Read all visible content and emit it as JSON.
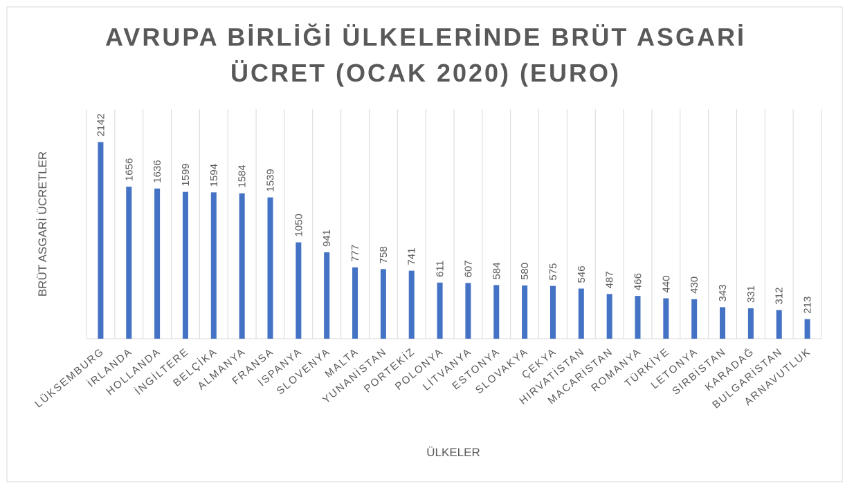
{
  "chart_data": {
    "type": "bar",
    "title": "AVRUPA BİRLİĞİ ÜLKELERİNDE BRÜT ASGARİ ÜCRET (OCAK 2020) (EURO)",
    "x_label": "ÜLKELER",
    "y_label": "BRÜT ASGARİ ÜCRETLER",
    "categories": [
      "LÜKSEMBURG",
      "İRLANDA",
      "HOLLANDA",
      "İNGİLTERE",
      "BELÇİKA",
      "ALMANYA",
      "FRANSA",
      "İSPANYA",
      "SLOVENYA",
      "MALTA",
      "YUNANİSTAN",
      "PORTEKİZ",
      "POLONYA",
      "LİTVANYA",
      "ESTONYA",
      "SLOVAKYA",
      "ÇEKYA",
      "HIRVATİSTAN",
      "MACARİSTAN",
      "ROMANYA",
      "TÜRKİYE",
      "LETONYA",
      "SIRBİSTAN",
      "KARADAĞ",
      "BULGARİSTAN",
      "ARNAVUTLUK"
    ],
    "values": [
      2142,
      1656,
      1636,
      1599,
      1594,
      1584,
      1539,
      1050,
      941,
      777,
      758,
      741,
      611,
      607,
      584,
      580,
      575,
      546,
      487,
      466,
      440,
      430,
      343,
      331,
      312,
      213
    ],
    "color": "#4472c4",
    "ylim": [
      0,
      2500
    ]
  }
}
